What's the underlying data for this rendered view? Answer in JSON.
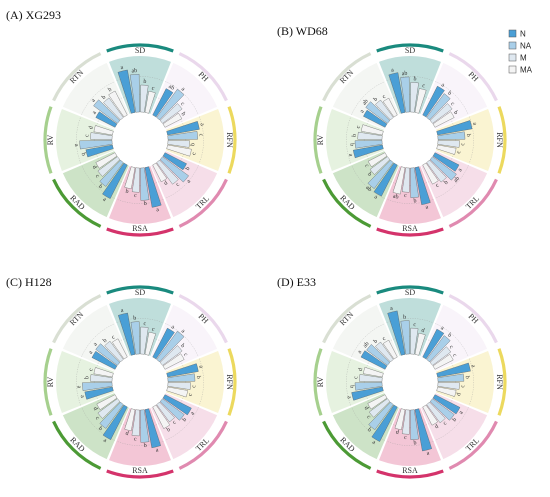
{
  "legend": [
    {
      "label": "N",
      "color": "#4a9fd6"
    },
    {
      "label": "NA",
      "color": "#a9cfe9"
    },
    {
      "label": "M",
      "color": "#dfe8f0"
    },
    {
      "label": "MA",
      "color": "#f4f4f4"
    }
  ],
  "colors": {
    "SD": "#1a8a7e",
    "PH": "#ead8ec",
    "RFN": "#ecd95e",
    "TRL": "#e08ab0",
    "RSA": "#d4336b",
    "RAD": "#4c9a35",
    "RV": "#a6d08e",
    "RTN": "#d9dfd3",
    "stroke": "#555555"
  },
  "chart_data": [
    {
      "type": "bar",
      "layout": "circular",
      "title": "(A) XG293",
      "groups": [
        "SD",
        "PH",
        "RFN",
        "TRL",
        "RSA",
        "RAD",
        "RV",
        "RTN"
      ],
      "series": [
        {
          "name": "N",
          "values": [
            80,
            55,
            60,
            45,
            75,
            70,
            50,
            40
          ],
          "letters": [
            "a",
            "ab",
            "a",
            "b",
            "a",
            "a",
            "b",
            "a"
          ]
        },
        {
          "name": "NA",
          "values": [
            70,
            65,
            55,
            60,
            60,
            55,
            60,
            55
          ],
          "letters": [
            "ab",
            "a",
            "c",
            "a",
            "b",
            "b",
            "a",
            "a"
          ]
        },
        {
          "name": "M",
          "values": [
            50,
            45,
            40,
            50,
            45,
            45,
            40,
            45
          ],
          "letters": [
            "b",
            "c",
            "b",
            "c",
            "c",
            "c",
            "c",
            "b"
          ]
        },
        {
          "name": "MA",
          "values": [
            40,
            35,
            45,
            35,
            40,
            40,
            35,
            50
          ],
          "letters": [
            "c",
            "b",
            "c",
            "d",
            "b",
            "d",
            "d",
            "b"
          ]
        }
      ]
    },
    {
      "type": "bar",
      "layout": "circular",
      "title": "(B) WD68",
      "groups": [
        "SD",
        "PH",
        "RFN",
        "TRL",
        "RSA",
        "RAD",
        "RV",
        "RTN"
      ],
      "series": [
        {
          "name": "N",
          "values": [
            75,
            60,
            65,
            50,
            70,
            65,
            55,
            45
          ],
          "letters": [
            "a",
            "a",
            "a",
            "a",
            "a",
            "a",
            "a",
            "a"
          ]
        },
        {
          "name": "NA",
          "values": [
            65,
            55,
            50,
            55,
            55,
            60,
            50,
            50
          ],
          "letters": [
            "ab",
            "b",
            "b",
            "ab",
            "b",
            "ab",
            "b",
            "ab"
          ]
        },
        {
          "name": "M",
          "values": [
            55,
            45,
            40,
            45,
            45,
            40,
            45,
            40
          ],
          "letters": [
            "b",
            "c",
            "c",
            "b",
            "c",
            "b",
            "b",
            "b"
          ]
        },
        {
          "name": "MA",
          "values": [
            45,
            40,
            35,
            40,
            50,
            35,
            40,
            35
          ],
          "letters": [
            "c",
            "b",
            "c",
            "c",
            "ab",
            "c",
            "c",
            "c"
          ]
        }
      ]
    },
    {
      "type": "bar",
      "layout": "circular",
      "title": "(C) H128",
      "groups": [
        "SD",
        "PH",
        "RFN",
        "TRL",
        "RSA",
        "RAD",
        "RV",
        "RTN"
      ],
      "series": [
        {
          "name": "N",
          "values": [
            78,
            60,
            58,
            55,
            72,
            68,
            52,
            48
          ],
          "letters": [
            "a",
            "a",
            "a",
            "a",
            "a",
            "a",
            "a",
            "a"
          ]
        },
        {
          "name": "NA",
          "values": [
            60,
            65,
            50,
            50,
            60,
            55,
            55,
            50
          ],
          "letters": [
            "b",
            "a",
            "b",
            "b",
            "b",
            "b",
            "a",
            "a"
          ]
        },
        {
          "name": "M",
          "values": [
            50,
            45,
            42,
            40,
            48,
            45,
            40,
            42
          ],
          "letters": [
            "c",
            "b",
            "c",
            "c",
            "c",
            "c",
            "b",
            "b"
          ]
        },
        {
          "name": "MA",
          "values": [
            42,
            40,
            38,
            45,
            40,
            38,
            35,
            38
          ],
          "letters": [
            "c",
            "c",
            "c",
            "b",
            "d",
            "d",
            "c",
            "c"
          ]
        }
      ]
    },
    {
      "type": "bar",
      "layout": "circular",
      "title": "(D) E33",
      "groups": [
        "SD",
        "PH",
        "RFN",
        "TRL",
        "RSA",
        "RAD",
        "RV",
        "RTN"
      ],
      "series": [
        {
          "name": "N",
          "values": [
            82,
            58,
            62,
            52,
            78,
            72,
            58,
            50
          ],
          "letters": [
            "a",
            "a",
            "a",
            "a",
            "a",
            "a",
            "a",
            "a"
          ]
        },
        {
          "name": "NA",
          "values": [
            62,
            55,
            48,
            50,
            55,
            58,
            50,
            48
          ],
          "letters": [
            "b",
            "b",
            "b",
            "b",
            "b",
            "b",
            "b",
            "ab"
          ]
        },
        {
          "name": "M",
          "values": [
            48,
            42,
            40,
            42,
            45,
            42,
            42,
            40
          ],
          "letters": [
            "c",
            "c",
            "c",
            "c",
            "c",
            "c",
            "c",
            "b"
          ]
        },
        {
          "name": "MA",
          "values": [
            40,
            38,
            35,
            38,
            38,
            36,
            36,
            35
          ],
          "letters": [
            "d",
            "c",
            "d",
            "d",
            "d",
            "d",
            "d",
            "c"
          ]
        }
      ]
    }
  ]
}
